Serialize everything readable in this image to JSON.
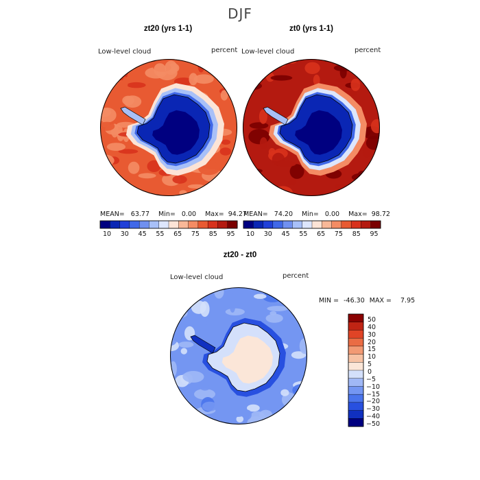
{
  "figure": {
    "title": "DJF"
  },
  "colors": {
    "abs_scale": [
      "#000080",
      "#0a26b4",
      "#2040d8",
      "#4068e8",
      "#7090f0",
      "#a8c0f8",
      "#dde6fc",
      "#fce4d6",
      "#f8b898",
      "#f48c64",
      "#e85a32",
      "#d8321c",
      "#b41a10",
      "#7a0000"
    ],
    "diff_scale": [
      "#000080",
      "#1030c0",
      "#2850e0",
      "#4a74ec",
      "#7496f2",
      "#a0b8f6",
      "#d4e0fb",
      "#fbe6d8",
      "#f7c2a4",
      "#f29a74",
      "#ea6c44",
      "#e04426",
      "#c02414",
      "#8a0202"
    ],
    "coast": "#000000"
  },
  "chart_data": [
    {
      "type": "heatmap",
      "projection": "south-polar-stereographic",
      "title": "zt20 (yrs 1-1)",
      "left_label": "Low-level cloud",
      "right_label": "percent",
      "stats": {
        "mean_label": "MEAN=",
        "mean": "63.77",
        "min_label": "Min=",
        "min": "0.00",
        "max_label": "Max=",
        "max": "94.27"
      },
      "colorbar_ticks": [
        "10",
        "30",
        "45",
        "55",
        "65",
        "75",
        "85",
        "95"
      ],
      "ocean_level": 10,
      "continent_level": 1,
      "transition_levels": [
        7,
        5,
        3
      ]
    },
    {
      "type": "heatmap",
      "projection": "south-polar-stereographic",
      "title": "zt0 (yrs 1-1)",
      "left_label": "Low-level cloud",
      "right_label": "percent",
      "stats": {
        "mean_label": "MEAN=",
        "mean": "74.20",
        "min_label": "Min=",
        "min": "0.00",
        "max_label": "Max=",
        "max": "98.72"
      },
      "colorbar_ticks": [
        "10",
        "30",
        "45",
        "55",
        "65",
        "75",
        "85",
        "95"
      ],
      "ocean_level": 12,
      "continent_level": 1,
      "transition_levels": [
        9,
        6,
        3
      ]
    },
    {
      "type": "heatmap",
      "projection": "south-polar-stereographic",
      "title": "zt20 - zt0",
      "left_label": "Low-level cloud",
      "right_label": "percent",
      "stats": {
        "min_label": "MIN =",
        "min": "-46.30",
        "max_label": "MAX =",
        "max": "7.95"
      },
      "colorbar_ticks": [
        "50",
        "40",
        "30",
        "20",
        "15",
        "10",
        "5",
        "0",
        "−5",
        "−10",
        "−15",
        "−20",
        "−30",
        "−40",
        "−50"
      ],
      "ocean_level": 4,
      "continent_level": 7
    }
  ]
}
